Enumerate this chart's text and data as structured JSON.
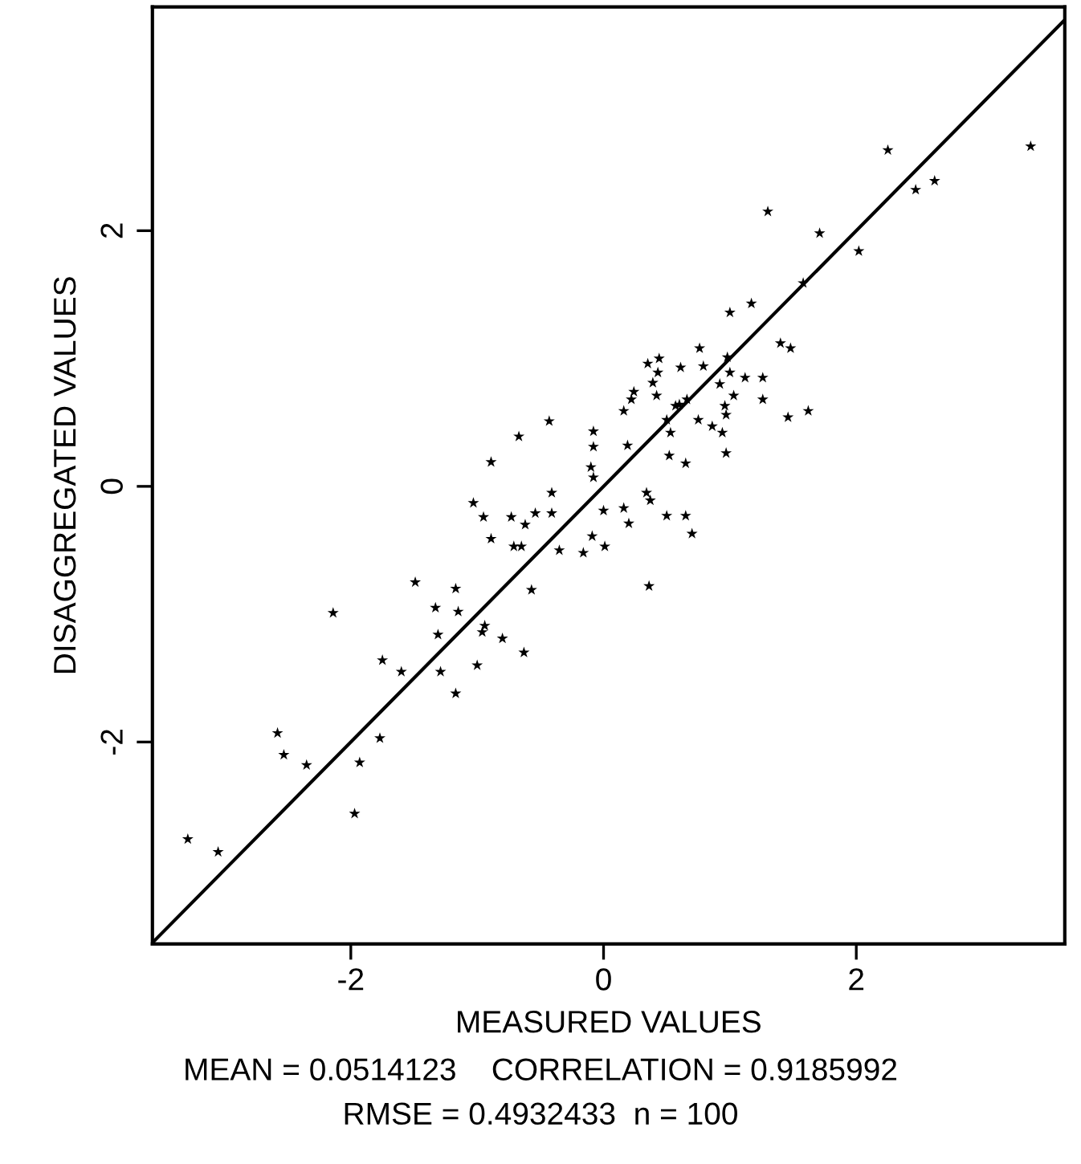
{
  "chart_data": {
    "type": "scatter",
    "xlabel": "MEASURED VALUES",
    "ylabel": "DISAGGREGATED VALUES",
    "annotations": [
      "MEAN = 0.0514123    CORRELATION = 0.9185992",
      "RMSE = 0.4932433  n = 100"
    ],
    "xlim": [
      -3.57,
      3.65
    ],
    "ylim": [
      -3.58,
      3.75
    ],
    "xticks": [
      -2,
      0,
      2
    ],
    "yticks": [
      -2,
      0,
      2
    ],
    "grid": false,
    "legend": false,
    "series": [
      {
        "marker": "star",
        "color": "#000000",
        "x": [
          -3.29,
          -3.05,
          -2.58,
          -2.53,
          -2.35,
          -1.93,
          -1.97,
          -1.77,
          -2.14,
          -1.75,
          -1.6,
          -1.49,
          -1.33,
          -1.31,
          -1.29,
          -1.17,
          -1.15,
          -1.17,
          -1.0,
          -0.96,
          -0.94,
          -0.8,
          -0.63,
          -0.57,
          -1.03,
          -0.95,
          -0.89,
          -0.73,
          -0.62,
          -0.54,
          -0.41,
          -0.41,
          -0.71,
          -0.65,
          -0.35,
          -0.16,
          -0.09,
          0.01,
          0.0,
          -0.43,
          -0.67,
          -0.89,
          -0.08,
          -0.08,
          -0.1,
          -0.08,
          2.25,
          3.38,
          2.47,
          2.62,
          1.3,
          1.71,
          2.02,
          1.58,
          1.0,
          1.17,
          1.4,
          1.48,
          0.76,
          0.35,
          0.44,
          0.61,
          0.79,
          0.43,
          0.39,
          0.98,
          1.0,
          0.92,
          1.12,
          1.26,
          1.26,
          1.03,
          0.24,
          0.22,
          0.42,
          0.16,
          0.57,
          0.6,
          0.66,
          0.5,
          0.96,
          0.97,
          0.75,
          0.86,
          0.94,
          1.46,
          1.62,
          0.53,
          0.19,
          0.52,
          0.65,
          0.97,
          0.34,
          0.37,
          0.16,
          0.2,
          0.5,
          0.65,
          0.7,
          0.36
        ],
        "values": [
          -2.76,
          -2.86,
          -1.93,
          -2.1,
          -2.18,
          -2.16,
          -2.56,
          -1.97,
          -0.99,
          -1.36,
          -1.45,
          -0.75,
          -0.95,
          -1.16,
          -1.45,
          -0.8,
          -0.98,
          -1.62,
          -1.4,
          -1.14,
          -1.09,
          -1.19,
          -1.3,
          -0.81,
          -0.13,
          -0.24,
          -0.41,
          -0.24,
          -0.3,
          -0.21,
          -0.05,
          -0.21,
          -0.47,
          -0.47,
          -0.5,
          -0.52,
          -0.39,
          -0.47,
          -0.19,
          0.51,
          0.39,
          0.19,
          0.43,
          0.31,
          0.15,
          0.07,
          2.63,
          2.66,
          2.32,
          2.39,
          2.15,
          1.98,
          1.84,
          1.59,
          1.36,
          1.43,
          1.12,
          1.08,
          1.08,
          0.96,
          1.0,
          0.93,
          0.94,
          0.89,
          0.81,
          1.01,
          0.89,
          0.8,
          0.85,
          0.85,
          0.68,
          0.71,
          0.74,
          0.68,
          0.71,
          0.59,
          0.63,
          0.64,
          0.68,
          0.52,
          0.63,
          0.56,
          0.52,
          0.47,
          0.42,
          0.54,
          0.59,
          0.42,
          0.32,
          0.24,
          0.18,
          0.26,
          -0.05,
          -0.11,
          -0.17,
          -0.29,
          -0.23,
          -0.23,
          -0.37,
          -0.78
        ]
      },
      {
        "type": "line",
        "marker": "none",
        "color": "#000000",
        "x": [
          -3.57,
          3.65
        ],
        "values": [
          -3.57,
          3.65
        ]
      }
    ]
  }
}
